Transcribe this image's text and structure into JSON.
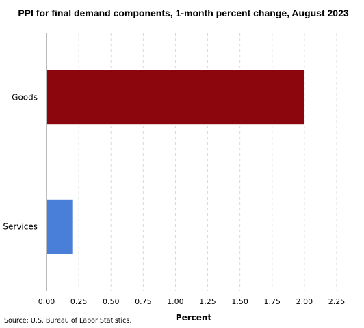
{
  "chart_data": {
    "type": "bar",
    "orientation": "horizontal",
    "title": "PPI for final demand components, 1-month percent change, August 2023",
    "categories": [
      "Goods",
      "Services"
    ],
    "values": [
      2.0,
      0.2
    ],
    "bar_colors": [
      "#8b060d",
      "#4a7fd9"
    ],
    "xlabel": "Percent",
    "ylabel": "",
    "xlim": [
      0,
      2.25
    ],
    "xticks": [
      "0.00",
      "0.25",
      "0.50",
      "0.75",
      "1.00",
      "1.25",
      "1.50",
      "1.75",
      "2.00",
      "2.25"
    ],
    "grid": "vertical-dashed",
    "legend": "none"
  },
  "source": "Source: U.S. Bureau of Labor Statistics."
}
